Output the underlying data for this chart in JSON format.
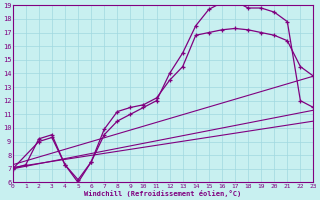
{
  "xlabel": "Windchill (Refroidissement éolien,°C)",
  "bg_color": "#c8f0f0",
  "line_color": "#800080",
  "xlim": [
    0,
    23
  ],
  "ylim": [
    6,
    19
  ],
  "xticks": [
    0,
    1,
    2,
    3,
    4,
    5,
    6,
    7,
    8,
    9,
    10,
    11,
    12,
    13,
    14,
    15,
    16,
    17,
    18,
    19,
    20,
    21,
    22,
    23
  ],
  "yticks": [
    6,
    7,
    8,
    9,
    10,
    11,
    12,
    13,
    14,
    15,
    16,
    17,
    18,
    19
  ],
  "curve1_x": [
    0,
    1,
    2,
    3,
    4,
    5,
    6,
    7,
    8,
    9,
    10,
    11,
    12,
    13,
    14,
    15,
    16,
    17,
    18,
    19,
    20,
    21,
    22,
    23
  ],
  "curve1_y": [
    7.0,
    7.3,
    9.2,
    9.5,
    7.3,
    6.0,
    7.5,
    9.9,
    11.2,
    11.5,
    11.7,
    12.2,
    13.5,
    14.5,
    16.8,
    17.0,
    17.2,
    17.3,
    17.2,
    17.0,
    16.8,
    16.4,
    14.5,
    13.8
  ],
  "curve2_x": [
    0,
    2,
    3,
    4,
    5,
    6,
    7,
    8,
    9,
    10,
    11,
    12,
    13,
    14,
    15,
    16,
    17,
    18,
    19,
    20,
    21,
    22,
    23
  ],
  "curve2_y": [
    7.0,
    9.0,
    9.3,
    7.3,
    6.2,
    7.5,
    9.5,
    10.5,
    11.0,
    11.5,
    12.0,
    14.0,
    15.5,
    17.5,
    18.7,
    19.2,
    19.3,
    18.8,
    18.8,
    18.5,
    17.8,
    12.0,
    11.5
  ],
  "line1_x": [
    0,
    23
  ],
  "line1_y": [
    7.3,
    13.8
  ],
  "line2_x": [
    0,
    23
  ],
  "line2_y": [
    7.0,
    11.3
  ],
  "line3_x": [
    0,
    23
  ],
  "line3_y": [
    7.1,
    10.5
  ]
}
